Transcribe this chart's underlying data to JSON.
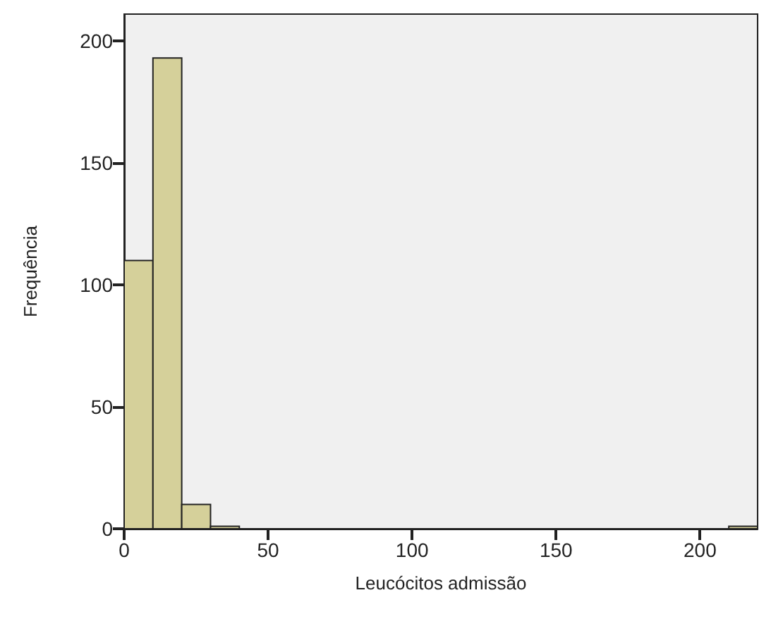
{
  "chart_data": {
    "type": "histogram",
    "xlabel": "Leucócitos admissão",
    "ylabel": "Frequência",
    "bins": [
      0,
      10,
      20,
      30,
      40,
      50,
      60,
      70,
      80,
      90,
      100,
      110,
      120,
      130,
      140,
      150,
      160,
      170,
      180,
      190,
      200,
      210,
      220
    ],
    "values": [
      110,
      193,
      10,
      1,
      0,
      0,
      0,
      0,
      0,
      0,
      0,
      0,
      0,
      0,
      0,
      0,
      0,
      0,
      0,
      0,
      0,
      1
    ],
    "color": "#d5d09a",
    "xlim": [
      0,
      220
    ],
    "xticks": [
      0,
      50,
      100,
      150,
      200
    ],
    "ylim": [
      0,
      211
    ],
    "yticks": [
      0,
      50,
      100,
      150,
      200
    ],
    "grid": false
  }
}
